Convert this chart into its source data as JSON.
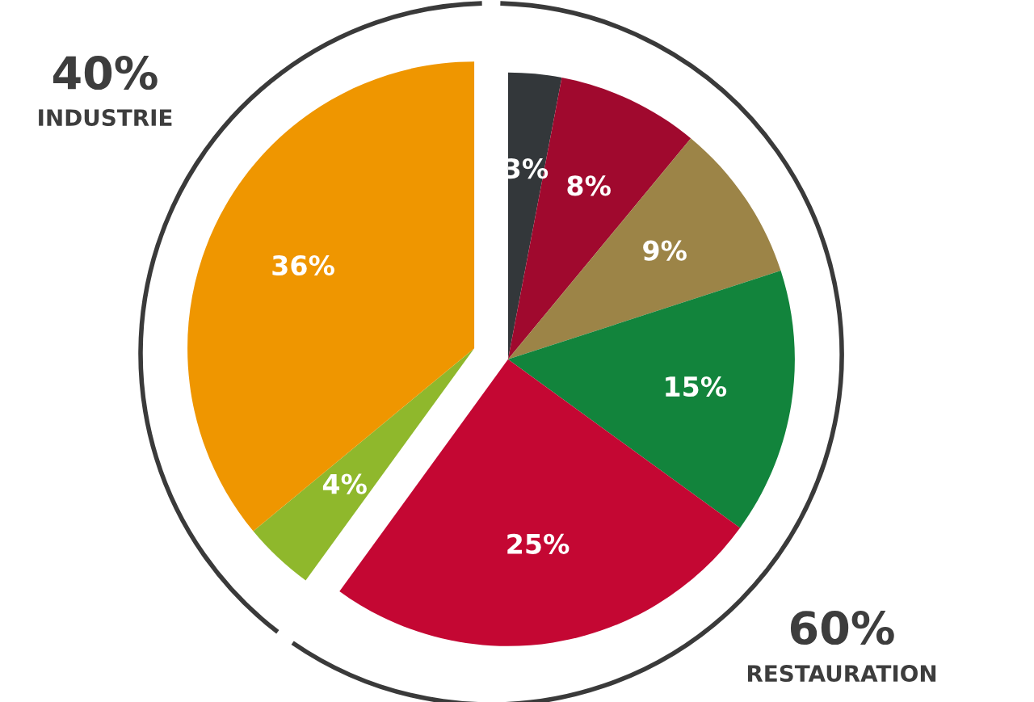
{
  "chart_data": {
    "type": "pie",
    "categories": [
      null,
      null,
      null,
      null,
      null,
      null,
      null
    ],
    "values": [
      3,
      8,
      9,
      15,
      25,
      4,
      36
    ],
    "colors": [
      "#33373a",
      "#a0092e",
      "#9c8447",
      "#12843c",
      "#c40733",
      "#8fb82c",
      "#ef9600"
    ],
    "value_labels": [
      "3%",
      "8%",
      "9%",
      "15%",
      "25%",
      "4%",
      "36%"
    ],
    "annotations": [
      "40%",
      "INDUSTRIE",
      "60%",
      "RESTAURATION"
    ]
  }
}
